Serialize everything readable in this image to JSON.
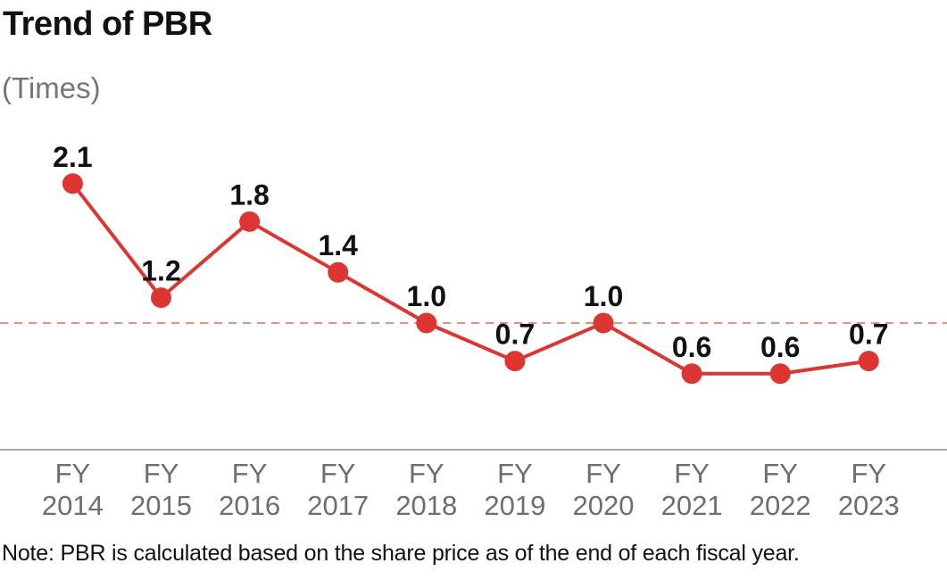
{
  "page": {
    "title": "Trend of PBR",
    "unit_label": "(Times)",
    "note": "Note: PBR is calculated based on the share price as of the end of each fiscal year."
  },
  "chart_data": {
    "type": "line",
    "title": "Trend of PBR",
    "unit": "(Times)",
    "categories": [
      "FY 2014",
      "FY 2015",
      "FY 2016",
      "FY 2017",
      "FY 2018",
      "FY 2019",
      "FY 2020",
      "FY 2021",
      "FY 2022",
      "FY 2023"
    ],
    "category_prefix": "FY",
    "years": [
      "2014",
      "2015",
      "2016",
      "2017",
      "2018",
      "2019",
      "2020",
      "2021",
      "2022",
      "2023"
    ],
    "values": [
      2.1,
      1.2,
      1.8,
      1.4,
      1.0,
      0.7,
      1.0,
      0.6,
      0.6,
      0.7
    ],
    "value_labels": [
      "2.1",
      "1.2",
      "1.8",
      "1.4",
      "1.0",
      "0.7",
      "1.0",
      "0.6",
      "0.6",
      "0.7"
    ],
    "series_color": "#DC3532",
    "reference_line": {
      "value": 1.0,
      "style": "dashed",
      "color": "#EE8C7D"
    },
    "axis_color": "#8A8A8A",
    "ylim": [
      0,
      2.55
    ],
    "grid": false,
    "legend": "none",
    "xlabel": "",
    "ylabel": "(Times)",
    "note": "Note: PBR is calculated based on the share price as of the end of each fiscal year."
  }
}
